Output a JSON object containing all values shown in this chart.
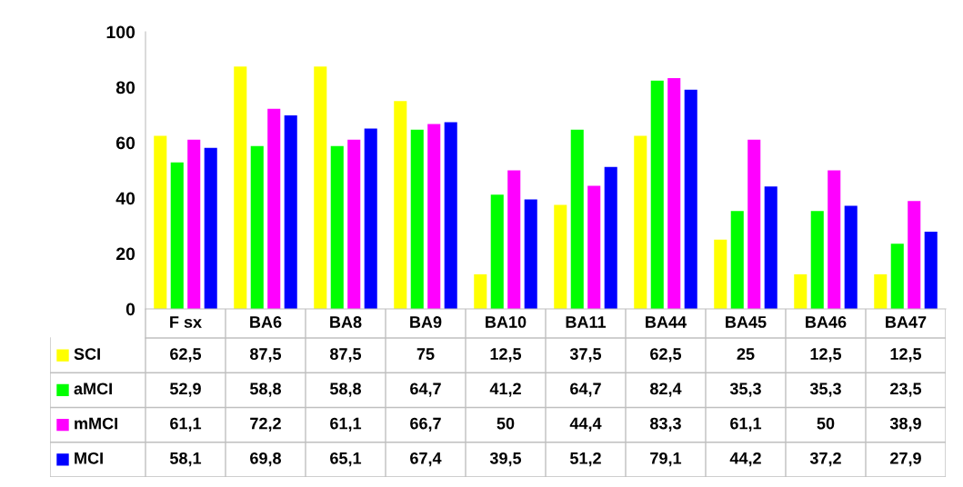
{
  "chart_data": {
    "type": "bar",
    "categories": [
      "F sx",
      "BA6",
      "BA8",
      "BA9",
      "BA10",
      "BA11",
      "BA44",
      "BA45",
      "BA46",
      "BA47"
    ],
    "series": [
      {
        "name": "SCI",
        "color": "#ffff00",
        "values": [
          62.5,
          87.5,
          87.5,
          75,
          12.5,
          37.5,
          62.5,
          25,
          12.5,
          12.5
        ],
        "value_labels": [
          "62,5",
          "87,5",
          "87,5",
          "75",
          "12,5",
          "37,5",
          "62,5",
          "25",
          "12,5",
          "12,5"
        ]
      },
      {
        "name": "aMCI",
        "color": "#00ff00",
        "values": [
          52.9,
          58.8,
          58.8,
          64.7,
          41.2,
          64.7,
          82.4,
          35.3,
          35.3,
          23.5
        ],
        "value_labels": [
          "52,9",
          "58,8",
          "58,8",
          "64,7",
          "41,2",
          "64,7",
          "82,4",
          "35,3",
          "35,3",
          "23,5"
        ]
      },
      {
        "name": "mMCI",
        "color": "#ff00ff",
        "values": [
          61.1,
          72.2,
          61.1,
          66.7,
          50,
          44.4,
          83.3,
          61.1,
          50,
          38.9
        ],
        "value_labels": [
          "61,1",
          "72,2",
          "61,1",
          "66,7",
          "50",
          "44,4",
          "83,3",
          "61,1",
          "50",
          "38,9"
        ]
      },
      {
        "name": "MCI",
        "color": "#0000ff",
        "values": [
          58.1,
          69.8,
          65.1,
          67.4,
          39.5,
          51.2,
          79.1,
          44.2,
          37.2,
          27.9
        ],
        "value_labels": [
          "58,1",
          "69,8",
          "65,1",
          "67,4",
          "39,5",
          "51,2",
          "79,1",
          "44,2",
          "37,2",
          "27,9"
        ]
      }
    ],
    "ylim": [
      0,
      100
    ],
    "yticks": [
      0,
      20,
      40,
      60,
      80,
      100
    ],
    "grid": false,
    "legend": "bottom"
  }
}
